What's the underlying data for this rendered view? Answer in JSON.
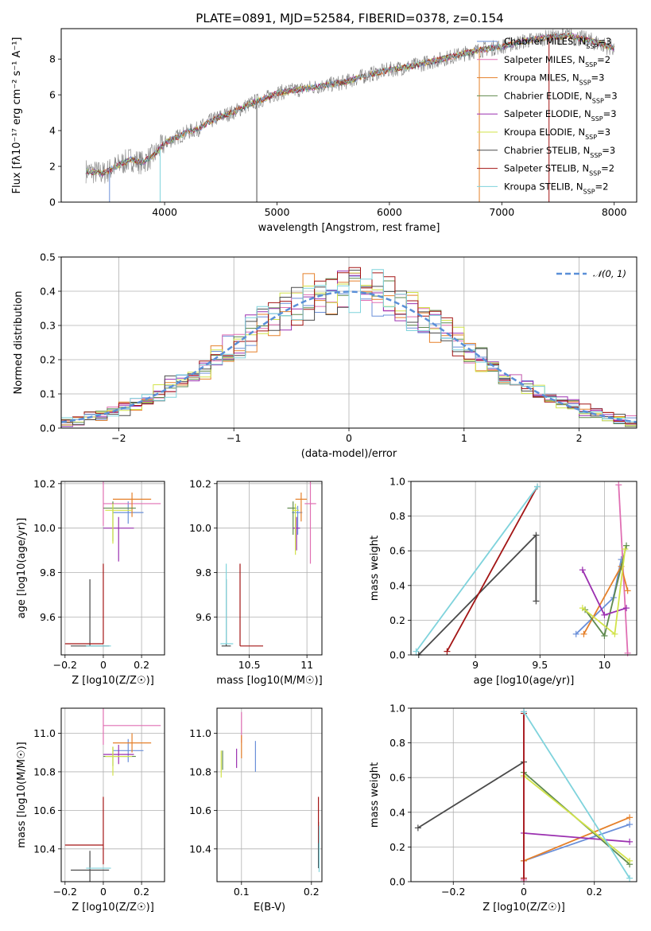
{
  "title": "PLATE=0891, MJD=52584, FIBERID=0378, z=0.154",
  "colors": {
    "Chabrier MILES": "#6a8fd9",
    "Salpeter MILES": "#e06fb3",
    "Kroupa MILES": "#e5802a",
    "Chabrier ELODIE": "#5f8a4e",
    "Salpeter ELODIE": "#9b30b0",
    "Kroupa ELODIE": "#d2e34a",
    "Chabrier STELIB": "#4a4a4a",
    "Salpeter STELIB": "#a31515",
    "Kroupa STELIB": "#7fd3dc",
    "data": "#808080",
    "gauss": "#5a8fd8"
  },
  "chart_data": [
    {
      "id": "spectrum",
      "type": "line",
      "xlabel": "wavelength [Angstrom, rest frame]",
      "ylabel": "Flux [fλ10⁻¹⁷ erg cm⁻² s⁻¹ A⁻¹]",
      "xlim": [
        3080,
        8200
      ],
      "ylim": [
        0,
        9.7
      ],
      "xticks": [
        4000,
        5000,
        6000,
        7000,
        8000
      ],
      "yticks": [
        0,
        2,
        4,
        6,
        8
      ],
      "grid": false,
      "legend_position": "top-right",
      "continuum": [
        [
          3300,
          1.75
        ],
        [
          3450,
          1.6
        ],
        [
          3600,
          2.1
        ],
        [
          3700,
          2.4
        ],
        [
          3800,
          2.2
        ],
        [
          3900,
          2.6
        ],
        [
          4000,
          3.3
        ],
        [
          4100,
          3.6
        ],
        [
          4200,
          3.9
        ],
        [
          4300,
          4.1
        ],
        [
          4400,
          4.5
        ],
        [
          4500,
          4.8
        ],
        [
          4600,
          5.0
        ],
        [
          4700,
          5.3
        ],
        [
          4800,
          5.6
        ],
        [
          4900,
          5.8
        ],
        [
          5000,
          6.1
        ],
        [
          5200,
          6.3
        ],
        [
          5400,
          6.5
        ],
        [
          5600,
          6.7
        ],
        [
          5800,
          7.1
        ],
        [
          6000,
          7.4
        ],
        [
          6200,
          7.6
        ],
        [
          6400,
          7.9
        ],
        [
          6600,
          8.2
        ],
        [
          6800,
          8.5
        ],
        [
          7000,
          8.7
        ],
        [
          7200,
          9.0
        ],
        [
          7400,
          9.2
        ],
        [
          7600,
          9.3
        ],
        [
          7800,
          9.0
        ],
        [
          8000,
          8.6
        ]
      ],
      "legend": [
        {
          "label": "Chabrier MILES, N_SSP=3",
          "color": "#6a8fd9"
        },
        {
          "label": "Salpeter MILES, N_SSP=2",
          "color": "#e06fb3"
        },
        {
          "label": "Kroupa MILES, N_SSP=3",
          "color": "#e5802a"
        },
        {
          "label": "Chabrier ELODIE, N_SSP=3",
          "color": "#5f8a4e"
        },
        {
          "label": "Salpeter ELODIE, N_SSP=3",
          "color": "#9b30b0"
        },
        {
          "label": "Kroupa ELODIE, N_SSP=3",
          "color": "#d2e34a"
        },
        {
          "label": "Chabrier STELIB, N_SSP=3",
          "color": "#4a4a4a"
        },
        {
          "label": "Salpeter STELIB, N_SSP=2",
          "color": "#a31515"
        },
        {
          "label": "Kroupa STELIB, N_SSP=2",
          "color": "#7fd3dc"
        }
      ]
    },
    {
      "id": "residuals",
      "type": "histogram",
      "xlabel": "(data-model)/error",
      "ylabel": "Normed distribution",
      "xlim": [
        -2.5,
        2.5
      ],
      "ylim": [
        0,
        0.5
      ],
      "xticks": [
        -2,
        -1,
        0,
        1,
        2
      ],
      "yticks": [
        0.0,
        0.1,
        0.2,
        0.3,
        0.4,
        0.5
      ],
      "grid": true,
      "legend_position": "top-right",
      "gauss_label": "𝒩(0, 1)",
      "bin_width": 0.1
    },
    {
      "id": "age-vs-Z",
      "type": "errorbar",
      "xlabel": "Z [log10(Z/Z☉)]",
      "ylabel": "age  [log10(age/yr)]",
      "xlim": [
        -0.22,
        0.32
      ],
      "ylim": [
        9.43,
        10.21
      ],
      "xticks": [
        -0.2,
        0.0,
        0.2
      ],
      "yticks": [
        9.6,
        9.8,
        10.0,
        10.2
      ],
      "grid": true,
      "points": [
        {
          "model": "Chabrier MILES",
          "x": 0.13,
          "y": 10.07,
          "xerr": [
            0.08,
            0.08
          ],
          "yerr": [
            0.05,
            0.05
          ]
        },
        {
          "model": "Salpeter MILES",
          "x": 0.0,
          "y": 10.11,
          "xerr": [
            0.0,
            0.3
          ],
          "yerr": [
            0.1,
            0.1
          ]
        },
        {
          "model": "Kroupa MILES",
          "x": 0.15,
          "y": 10.13,
          "xerr": [
            0.1,
            0.1
          ],
          "yerr": [
            0.08,
            0.03
          ]
        },
        {
          "model": "Chabrier ELODIE",
          "x": 0.05,
          "y": 10.09,
          "xerr": [
            0.05,
            0.12
          ],
          "yerr": [
            0.15,
            0.03
          ]
        },
        {
          "model": "Salpeter ELODIE",
          "x": 0.08,
          "y": 10.0,
          "xerr": [
            0.08,
            0.08
          ],
          "yerr": [
            0.15,
            0.05
          ]
        },
        {
          "model": "Kroupa ELODIE",
          "x": 0.05,
          "y": 10.08,
          "xerr": [
            0.04,
            0.1
          ],
          "yerr": [
            0.15,
            0.03
          ]
        },
        {
          "model": "Chabrier STELIB",
          "x": -0.07,
          "y": 9.47,
          "xerr": [
            0.1,
            0.1
          ],
          "yerr": [
            0.0,
            0.3
          ]
        },
        {
          "model": "Salpeter STELIB",
          "x": 0.0,
          "y": 9.48,
          "xerr": [
            0.2,
            0.0
          ],
          "yerr": [
            0.0,
            0.36
          ]
        },
        {
          "model": "Kroupa STELIB",
          "x": -0.03,
          "y": 9.47,
          "xerr": [
            0.06,
            0.07
          ],
          "yerr": [
            0.0,
            0.0
          ]
        }
      ]
    },
    {
      "id": "age-vs-mass",
      "type": "errorbar",
      "xlabel": "mass [log10(M/M☉)]",
      "ylabel": "",
      "xlim": [
        10.22,
        11.13
      ],
      "ylim": [
        9.43,
        10.21
      ],
      "xticks": [
        10.5,
        11.0
      ],
      "yticks": [
        9.6,
        9.8,
        10.0,
        10.2
      ],
      "grid": true,
      "points": [
        {
          "model": "Chabrier MILES",
          "x": 10.92,
          "y": 10.07,
          "xerr": [
            0.05,
            0.04
          ],
          "yerr": [
            0.1,
            0.03
          ]
        },
        {
          "model": "Salpeter MILES",
          "x": 11.03,
          "y": 10.11,
          "xerr": [
            0.05,
            0.05
          ],
          "yerr": [
            0.27,
            0.1
          ]
        },
        {
          "model": "Kroupa MILES",
          "x": 10.95,
          "y": 10.13,
          "xerr": [
            0.05,
            0.05
          ],
          "yerr": [
            0.1,
            0.03
          ]
        },
        {
          "model": "Chabrier ELODIE",
          "x": 10.88,
          "y": 10.09,
          "xerr": [
            0.05,
            0.03
          ],
          "yerr": [
            0.12,
            0.03
          ]
        },
        {
          "model": "Salpeter ELODIE",
          "x": 10.91,
          "y": 10.0,
          "xerr": [
            0.03,
            0.03
          ],
          "yerr": [
            0.1,
            0.05
          ]
        },
        {
          "model": "Kroupa ELODIE",
          "x": 10.9,
          "y": 10.08,
          "xerr": [
            0.03,
            0.03
          ],
          "yerr": [
            0.2,
            0.03
          ]
        },
        {
          "model": "Chabrier STELIB",
          "x": 10.3,
          "y": 9.47,
          "xerr": [
            0.04,
            0.04
          ],
          "yerr": [
            0.0,
            0.3
          ]
        },
        {
          "model": "Salpeter STELIB",
          "x": 10.42,
          "y": 9.47,
          "xerr": [
            0.0,
            0.2
          ],
          "yerr": [
            0.0,
            0.37
          ]
        },
        {
          "model": "Kroupa STELIB",
          "x": 10.3,
          "y": 9.48,
          "xerr": [
            0.05,
            0.06
          ],
          "yerr": [
            0.0,
            0.36
          ]
        }
      ]
    },
    {
      "id": "weight-vs-age",
      "type": "line",
      "xlabel": "age  [log10(age/yr)]",
      "ylabel": "mass weight",
      "xlim": [
        8.5,
        10.25
      ],
      "ylim": [
        0,
        1.0
      ],
      "xticks": [
        9.0,
        9.5,
        10.0
      ],
      "yticks": [
        0.0,
        0.2,
        0.4,
        0.6,
        0.8,
        1.0
      ],
      "grid": true,
      "series": [
        {
          "model": "Chabrier MILES",
          "x": [
            9.78,
            10.07,
            10.13
          ],
          "y": [
            0.12,
            0.33,
            0.55
          ]
        },
        {
          "model": "Salpeter MILES",
          "x": [
            10.11,
            10.18
          ],
          "y": [
            0.98,
            0.01
          ]
        },
        {
          "model": "Kroupa MILES",
          "x": [
            9.84,
            10.13,
            10.18
          ],
          "y": [
            0.12,
            0.51,
            0.37
          ]
        },
        {
          "model": "Chabrier ELODIE",
          "x": [
            9.85,
            10.0,
            10.17
          ],
          "y": [
            0.26,
            0.11,
            0.63
          ]
        },
        {
          "model": "Salpeter ELODIE",
          "x": [
            9.83,
            10.0,
            10.17
          ],
          "y": [
            0.49,
            0.23,
            0.27
          ]
        },
        {
          "model": "Kroupa ELODIE",
          "x": [
            9.83,
            10.08,
            10.16
          ],
          "y": [
            0.27,
            0.12,
            0.61
          ]
        },
        {
          "model": "Chabrier STELIB",
          "x": [
            8.56,
            9.47,
            9.47
          ],
          "y": [
            0.0,
            0.69,
            0.31
          ]
        },
        {
          "model": "Salpeter STELIB",
          "x": [
            8.78,
            9.48
          ],
          "y": [
            0.02,
            0.97
          ]
        },
        {
          "model": "Kroupa STELIB",
          "x": [
            8.54,
            9.48
          ],
          "y": [
            0.02,
            0.97
          ]
        }
      ]
    },
    {
      "id": "mass-vs-Z",
      "type": "errorbar",
      "xlabel": "Z [log10(Z/Z☉)]",
      "ylabel": "mass [log10(M/M☉)]",
      "xlim": [
        -0.22,
        0.32
      ],
      "ylim": [
        10.23,
        11.13
      ],
      "xticks": [
        -0.2,
        0.0,
        0.2
      ],
      "yticks": [
        10.4,
        10.6,
        10.8,
        11.0
      ],
      "grid": true,
      "points": [
        {
          "model": "Chabrier MILES",
          "x": 0.13,
          "y": 10.91,
          "xerr": [
            0.08,
            0.08
          ],
          "yerr": [
            0.06,
            0.06
          ]
        },
        {
          "model": "Salpeter MILES",
          "x": 0.0,
          "y": 11.04,
          "xerr": [
            0.0,
            0.3
          ],
          "yerr": [
            0.1,
            0.1
          ]
        },
        {
          "model": "Kroupa MILES",
          "x": 0.15,
          "y": 10.95,
          "xerr": [
            0.1,
            0.1
          ],
          "yerr": [
            0.05,
            0.05
          ]
        },
        {
          "model": "Chabrier ELODIE",
          "x": 0.05,
          "y": 10.88,
          "xerr": [
            0.05,
            0.12
          ],
          "yerr": [
            0.05,
            0.05
          ]
        },
        {
          "model": "Salpeter ELODIE",
          "x": 0.08,
          "y": 10.89,
          "xerr": [
            0.08,
            0.08
          ],
          "yerr": [
            0.05,
            0.05
          ]
        },
        {
          "model": "Kroupa ELODIE",
          "x": 0.05,
          "y": 10.88,
          "xerr": [
            0.04,
            0.1
          ],
          "yerr": [
            0.1,
            0.05
          ]
        },
        {
          "model": "Chabrier STELIB",
          "x": -0.07,
          "y": 10.29,
          "xerr": [
            0.1,
            0.1
          ],
          "yerr": [
            0.1,
            0.1
          ]
        },
        {
          "model": "Salpeter STELIB",
          "x": 0.0,
          "y": 10.42,
          "xerr": [
            0.2,
            0.0
          ],
          "yerr": [
            0.1,
            0.25
          ]
        },
        {
          "model": "Kroupa STELIB",
          "x": -0.03,
          "y": 10.3,
          "xerr": [
            0.06,
            0.07
          ],
          "yerr": [
            0.0,
            0.0
          ]
        }
      ]
    },
    {
      "id": "mass-vs-ebv",
      "type": "errorbar",
      "xlabel": "E(B-V)",
      "ylabel": "",
      "xlim": [
        0.065,
        0.215
      ],
      "ylim": [
        10.23,
        11.13
      ],
      "xticks": [
        0.1,
        0.2
      ],
      "yticks": [
        10.4,
        10.6,
        10.8,
        11.0
      ],
      "grid": true,
      "points": [
        {
          "model": "Chabrier MILES",
          "x": 0.12,
          "y": 10.88,
          "xerr": [
            0.0,
            0.0
          ],
          "yerr": [
            0.08,
            0.08
          ]
        },
        {
          "model": "Salpeter MILES",
          "x": 0.1,
          "y": 11.03,
          "xerr": [
            0.0,
            0.0
          ],
          "yerr": [
            0.08,
            0.08
          ]
        },
        {
          "model": "Kroupa MILES",
          "x": 0.1,
          "y": 10.93,
          "xerr": [
            0.0,
            0.0
          ],
          "yerr": [
            0.06,
            0.06
          ]
        },
        {
          "model": "Chabrier ELODIE",
          "x": 0.073,
          "y": 10.86,
          "xerr": [
            0.0,
            0.0
          ],
          "yerr": [
            0.05,
            0.05
          ]
        },
        {
          "model": "Salpeter ELODIE",
          "x": 0.093,
          "y": 10.87,
          "xerr": [
            0.0,
            0.0
          ],
          "yerr": [
            0.05,
            0.05
          ]
        },
        {
          "model": "Kroupa ELODIE",
          "x": 0.071,
          "y": 10.84,
          "xerr": [
            0.0,
            0.0
          ],
          "yerr": [
            0.07,
            0.07
          ]
        },
        {
          "model": "Chabrier STELIB",
          "x": 0.21,
          "y": 10.42,
          "xerr": [
            0.0,
            0.0
          ],
          "yerr": [
            0.12,
            0.12
          ]
        },
        {
          "model": "Salpeter STELIB",
          "x": 0.21,
          "y": 10.55,
          "xerr": [
            0.0,
            0.0
          ],
          "yerr": [
            0.12,
            0.12
          ]
        },
        {
          "model": "Kroupa STELIB",
          "x": 0.211,
          "y": 10.4,
          "xerr": [
            0.0,
            0.0
          ],
          "yerr": [
            0.12,
            0.12
          ]
        }
      ]
    },
    {
      "id": "weight-vs-Z",
      "type": "line",
      "xlabel": "Z [log10(Z/Z☉)]",
      "ylabel": "mass weight",
      "xlim": [
        -0.32,
        0.32
      ],
      "ylim": [
        0,
        1.0
      ],
      "xticks": [
        -0.2,
        0.0,
        0.2
      ],
      "yticks": [
        0.0,
        0.2,
        0.4,
        0.6,
        0.8,
        1.0
      ],
      "grid": true,
      "series": [
        {
          "model": "Chabrier MILES",
          "x": [
            0.0,
            0.3
          ],
          "y": [
            0.12,
            0.33
          ]
        },
        {
          "model": "Salpeter MILES",
          "x": [
            0.0,
            0.0
          ],
          "y": [
            0.98,
            0.01
          ]
        },
        {
          "model": "Kroupa MILES",
          "x": [
            0.0,
            0.3
          ],
          "y": [
            0.12,
            0.37
          ]
        },
        {
          "model": "Chabrier ELODIE",
          "x": [
            0.0,
            0.3
          ],
          "y": [
            0.63,
            0.1
          ]
        },
        {
          "model": "Salpeter ELODIE",
          "x": [
            0.0,
            0.3
          ],
          "y": [
            0.28,
            0.23
          ]
        },
        {
          "model": "Kroupa ELODIE",
          "x": [
            0.0,
            0.3
          ],
          "y": [
            0.61,
            0.12
          ]
        },
        {
          "model": "Chabrier STELIB",
          "x": [
            -0.3,
            0.0
          ],
          "y": [
            0.31,
            0.69
          ]
        },
        {
          "model": "Salpeter STELIB",
          "x": [
            0.0,
            0.0
          ],
          "y": [
            0.97,
            0.02
          ]
        },
        {
          "model": "Kroupa STELIB",
          "x": [
            0.0,
            0.3
          ],
          "y": [
            0.98,
            0.02
          ]
        }
      ]
    }
  ]
}
